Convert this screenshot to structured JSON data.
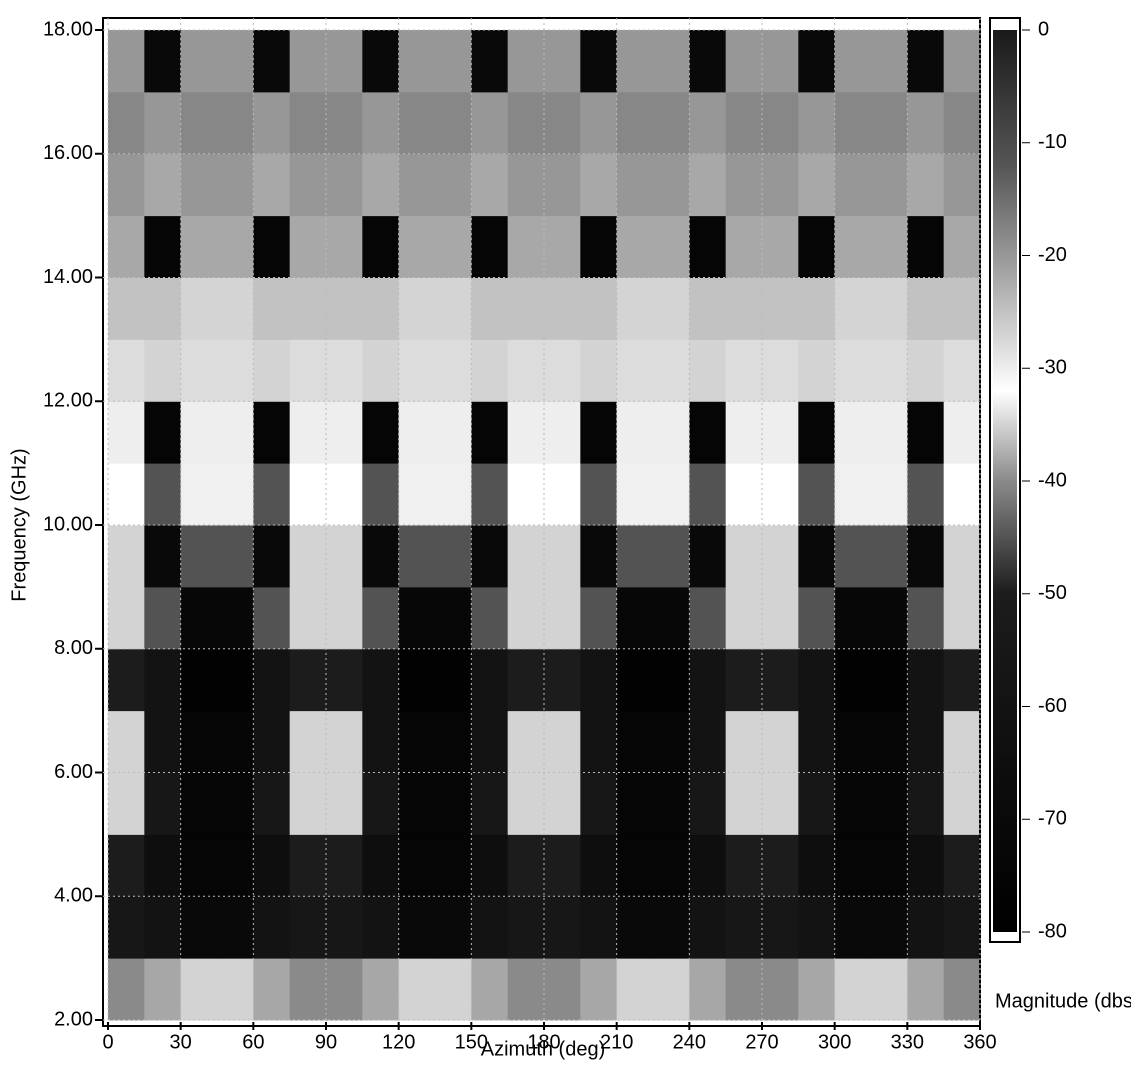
{
  "chart_data": {
    "type": "heatmap",
    "x_label": "Azimuth (deg)",
    "y_label": "Frequency (GHz)",
    "colorbar_label": "Magnitude (dbs",
    "xbins": [
      0,
      15,
      30,
      45,
      60,
      75,
      90,
      105,
      120,
      135,
      150,
      165,
      180,
      195,
      210,
      225,
      240,
      255,
      270,
      285,
      300,
      315,
      330,
      345,
      360
    ],
    "ybins": [
      2,
      3,
      4,
      5,
      6,
      7,
      8,
      9,
      10,
      11,
      12,
      13,
      14,
      15,
      16,
      17,
      18
    ],
    "z": [
      [
        -40,
        -38,
        -35,
        -35,
        -38,
        -40,
        -40,
        -38,
        -35,
        -35,
        -38,
        -40,
        -40,
        -38,
        -35,
        -35,
        -38,
        -40,
        -40,
        -38,
        -35,
        -35,
        -38,
        -40
      ],
      [
        -55,
        -60,
        -70,
        -70,
        -60,
        -55,
        -55,
        -60,
        -70,
        -70,
        -60,
        -55,
        -55,
        -60,
        -70,
        -70,
        -60,
        -55,
        -55,
        -60,
        -70,
        -70,
        -60,
        -55
      ],
      [
        -50,
        -65,
        -75,
        -75,
        -65,
        -50,
        -50,
        -65,
        -75,
        -75,
        -65,
        -50,
        -50,
        -65,
        -75,
        -75,
        -65,
        -50,
        -50,
        -65,
        -75,
        -75,
        -65,
        -50
      ],
      [
        -35,
        -55,
        -75,
        -75,
        -55,
        -35,
        -35,
        -55,
        -75,
        -75,
        -55,
        -35,
        -35,
        -55,
        -75,
        -75,
        -55,
        -35,
        -35,
        -55,
        -75,
        -75,
        -55,
        -35
      ],
      [
        -35,
        -60,
        -75,
        -75,
        -60,
        -35,
        -35,
        -60,
        -75,
        -75,
        -60,
        -35,
        -35,
        -60,
        -75,
        -75,
        -60,
        -35,
        -35,
        -60,
        -75,
        -75,
        -60,
        -35
      ],
      [
        -50,
        -60,
        -78,
        -78,
        -60,
        -50,
        -50,
        -60,
        -78,
        -78,
        -60,
        -50,
        -50,
        -60,
        -78,
        -78,
        -60,
        -50,
        -50,
        -60,
        -78,
        -78,
        -60,
        -50
      ],
      [
        -35,
        -45,
        -72,
        -72,
        -45,
        -35,
        -35,
        -45,
        -72,
        -72,
        -45,
        -35,
        -35,
        -45,
        -72,
        -72,
        -45,
        -35,
        -35,
        -45,
        -72,
        -72,
        -45,
        -35
      ],
      [
        -35,
        -70,
        -45,
        -45,
        -70,
        -35,
        -35,
        -70,
        -45,
        -45,
        -70,
        -35,
        -35,
        -70,
        -45,
        -45,
        -70,
        -35,
        -35,
        -70,
        -45,
        -45,
        -70,
        -35
      ],
      [
        -32,
        -45,
        -33,
        -33,
        -45,
        -32,
        -32,
        -45,
        -33,
        -33,
        -45,
        -32,
        -32,
        -45,
        -33,
        -33,
        -45,
        -32,
        -32,
        -45,
        -33,
        -33,
        -45,
        -32
      ],
      [
        -30,
        -75,
        -30,
        -30,
        -75,
        -30,
        -30,
        -75,
        -30,
        -30,
        -75,
        -30,
        -30,
        -75,
        -30,
        -30,
        -75,
        -30,
        -30,
        -75,
        -30,
        -30,
        -75,
        -30
      ],
      [
        -28,
        -35,
        -28,
        -28,
        -35,
        -28,
        -28,
        -35,
        -28,
        -28,
        -35,
        -28,
        -28,
        -35,
        -28,
        -28,
        -35,
        -28,
        -28,
        -35,
        -28,
        -28,
        -35,
        -28
      ],
      [
        -25,
        -25,
        -27,
        -27,
        -25,
        -25,
        -25,
        -25,
        -27,
        -27,
        -25,
        -25,
        -25,
        -25,
        -27,
        -27,
        -25,
        -25,
        -25,
        -25,
        -27,
        -27,
        -25,
        -25
      ],
      [
        -22,
        -75,
        -22,
        -22,
        -75,
        -22,
        -22,
        -75,
        -22,
        -22,
        -75,
        -22,
        -22,
        -75,
        -22,
        -22,
        -75,
        -22,
        -22,
        -75,
        -22,
        -22,
        -75,
        -22
      ],
      [
        -20,
        -22,
        -20,
        -20,
        -22,
        -20,
        -20,
        -22,
        -20,
        -20,
        -22,
        -20,
        -20,
        -22,
        -20,
        -20,
        -22,
        -20,
        -20,
        -22,
        -20,
        -20,
        -22,
        -20
      ],
      [
        -18,
        -20,
        -18,
        -18,
        -20,
        -18,
        -18,
        -20,
        -18,
        -18,
        -20,
        -18,
        -18,
        -20,
        -18,
        -18,
        -20,
        -18,
        -18,
        -20,
        -18,
        -18,
        -20,
        -18
      ],
      [
        -20,
        -70,
        -20,
        -20,
        -70,
        -20,
        -20,
        -70,
        -20,
        -20,
        -70,
        -20,
        -20,
        -70,
        -20,
        -20,
        -70,
        -20,
        -20,
        -70,
        -20,
        -20,
        -70,
        -20
      ]
    ],
    "xlim": [
      0,
      360
    ],
    "xticks": [
      0,
      30,
      60,
      90,
      120,
      150,
      180,
      210,
      240,
      270,
      300,
      330,
      360
    ],
    "ylim": [
      2,
      18
    ],
    "yticks": [
      {
        "value": 2,
        "label": "2.00"
      },
      {
        "value": 4,
        "label": "4.00"
      },
      {
        "value": 6,
        "label": "6.00"
      },
      {
        "value": 8,
        "label": "8.00"
      },
      {
        "value": 10,
        "label": "10.00"
      },
      {
        "value": 12,
        "label": "12.00"
      },
      {
        "value": 14,
        "label": "14.00"
      },
      {
        "value": 16,
        "label": "16.00"
      },
      {
        "value": 18,
        "label": "18.00"
      }
    ],
    "clim": [
      -80,
      0
    ],
    "cticks": [
      0,
      -10,
      -20,
      -30,
      -40,
      -50,
      -60,
      -70,
      -80
    ],
    "colorscale": [
      [
        0,
        "#1a1a1a"
      ],
      [
        -12,
        "#555555"
      ],
      [
        -22,
        "#a8a8a8"
      ],
      [
        -32,
        "#ffffff"
      ],
      [
        -40,
        "#8a8a8a"
      ],
      [
        -50,
        "#1c1c1c"
      ],
      [
        -80,
        "#000000"
      ]
    ],
    "grid": true
  }
}
